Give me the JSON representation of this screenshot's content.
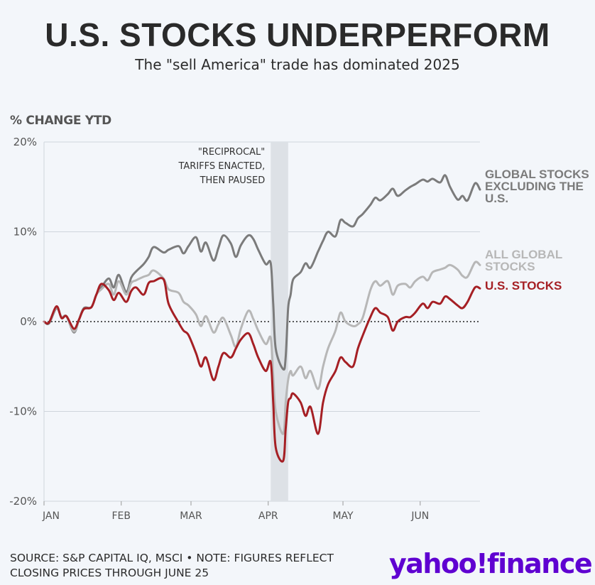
{
  "header": {
    "title": "U.S. STOCKS UNDERPERFORM",
    "subtitle": "The \"sell America\" trade has dominated 2025"
  },
  "footer": {
    "source_line1": "SOURCE: S&P CAPITAL IQ, MSCI • NOTE: FIGURES REFLECT",
    "source_line2": "CLOSING PRICES THROUGH JUNE 25",
    "logo_text_a": "yahoo",
    "logo_text_b": "!",
    "logo_text_c": "finance",
    "logo_color": "#5f01d1"
  },
  "chart_data": {
    "type": "line",
    "ylabel": "% CHANGE YTD",
    "ylim": [
      -20,
      20
    ],
    "yticks": [
      20,
      10,
      0,
      -10,
      -20
    ],
    "ytick_labels": [
      "20%",
      "10%",
      "0%",
      "-10%",
      "-20%"
    ],
    "xlim": [
      "2025-01-01",
      "2025-06-25"
    ],
    "xticks": [
      "2025-01-01",
      "2025-02-01",
      "2025-03-01",
      "2025-04-01",
      "2025-05-01",
      "2025-06-01"
    ],
    "xtick_labels": [
      "JAN",
      "FEB",
      "MAR",
      "APR",
      "MAY",
      "JUN"
    ],
    "zero_line": "dotted",
    "annotation": {
      "lines": [
        "\"RECIPROCAL\"",
        "TARIFFS ENACTED,",
        "THEN PAUSED"
      ],
      "shade_start": "2025-04-02",
      "shade_end": "2025-04-09",
      "shade_color": "#dde1e6"
    },
    "series": [
      {
        "name": "GLOBAL STOCKS EXCLUDING THE U.S.",
        "label_lines": [
          "GLOBAL STOCKS",
          "EXCLUDING THE",
          "U.S."
        ],
        "color": "#7b7b7b",
        "x": [
          "2025-01-01",
          "2025-01-03",
          "2025-01-06",
          "2025-01-08",
          "2025-01-10",
          "2025-01-13",
          "2025-01-15",
          "2025-01-17",
          "2025-01-20",
          "2025-01-22",
          "2025-01-24",
          "2025-01-27",
          "2025-01-29",
          "2025-01-31",
          "2025-02-03",
          "2025-02-05",
          "2025-02-07",
          "2025-02-10",
          "2025-02-12",
          "2025-02-14",
          "2025-02-18",
          "2025-02-20",
          "2025-02-24",
          "2025-02-26",
          "2025-02-28",
          "2025-03-03",
          "2025-03-05",
          "2025-03-07",
          "2025-03-10",
          "2025-03-12",
          "2025-03-14",
          "2025-03-17",
          "2025-03-19",
          "2025-03-21",
          "2025-03-24",
          "2025-03-26",
          "2025-03-28",
          "2025-03-31",
          "2025-04-02",
          "2025-04-03",
          "2025-04-04",
          "2025-04-07",
          "2025-04-08",
          "2025-04-09",
          "2025-04-10",
          "2025-04-11",
          "2025-04-14",
          "2025-04-16",
          "2025-04-18",
          "2025-04-21",
          "2025-04-23",
          "2025-04-25",
          "2025-04-28",
          "2025-04-30",
          "2025-05-02",
          "2025-05-05",
          "2025-05-07",
          "2025-05-09",
          "2025-05-12",
          "2025-05-14",
          "2025-05-16",
          "2025-05-19",
          "2025-05-21",
          "2025-05-23",
          "2025-05-26",
          "2025-05-28",
          "2025-05-30",
          "2025-06-02",
          "2025-06-04",
          "2025-06-06",
          "2025-06-09",
          "2025-06-11",
          "2025-06-13",
          "2025-06-16",
          "2025-06-18",
          "2025-06-20",
          "2025-06-23",
          "2025-06-25"
        ],
        "y": [
          0,
          -0.2,
          1.5,
          0.5,
          0.6,
          -1.2,
          0.2,
          1.5,
          1.6,
          3.0,
          3.8,
          4.8,
          3.8,
          5.2,
          3.3,
          4.9,
          5.6,
          6.4,
          7.2,
          8.3,
          7.7,
          8.0,
          8.4,
          7.6,
          8.4,
          9.4,
          7.8,
          8.8,
          6.8,
          8.2,
          9.6,
          8.7,
          7.2,
          8.5,
          9.6,
          9.2,
          8.0,
          6.4,
          6.5,
          2.0,
          -3.0,
          -5.3,
          -4.0,
          1.5,
          3.0,
          4.7,
          5.5,
          6.5,
          6.0,
          7.8,
          9.0,
          10.0,
          9.5,
          11.3,
          11.0,
          10.6,
          11.5,
          12.0,
          13.0,
          13.8,
          13.5,
          14.2,
          14.8,
          14.0,
          14.6,
          15.0,
          15.3,
          15.8,
          15.6,
          15.9,
          15.5,
          16.3,
          15.0,
          13.6,
          14.0,
          13.5,
          15.4,
          14.7
        ]
      },
      {
        "name": "ALL GLOBAL STOCKS",
        "label_lines": [
          "ALL GLOBAL",
          "STOCKS"
        ],
        "color": "#b7b7b7",
        "x": [
          "2025-01-01",
          "2025-01-03",
          "2025-01-06",
          "2025-01-08",
          "2025-01-10",
          "2025-01-13",
          "2025-01-15",
          "2025-01-17",
          "2025-01-20",
          "2025-01-22",
          "2025-01-24",
          "2025-01-27",
          "2025-01-29",
          "2025-01-31",
          "2025-02-03",
          "2025-02-05",
          "2025-02-07",
          "2025-02-10",
          "2025-02-12",
          "2025-02-14",
          "2025-02-18",
          "2025-02-20",
          "2025-02-24",
          "2025-02-26",
          "2025-02-28",
          "2025-03-03",
          "2025-03-05",
          "2025-03-07",
          "2025-03-10",
          "2025-03-12",
          "2025-03-14",
          "2025-03-17",
          "2025-03-19",
          "2025-03-21",
          "2025-03-24",
          "2025-03-26",
          "2025-03-28",
          "2025-03-31",
          "2025-04-02",
          "2025-04-03",
          "2025-04-04",
          "2025-04-07",
          "2025-04-08",
          "2025-04-09",
          "2025-04-10",
          "2025-04-11",
          "2025-04-14",
          "2025-04-16",
          "2025-04-18",
          "2025-04-21",
          "2025-04-23",
          "2025-04-25",
          "2025-04-28",
          "2025-04-30",
          "2025-05-02",
          "2025-05-05",
          "2025-05-07",
          "2025-05-09",
          "2025-05-12",
          "2025-05-14",
          "2025-05-16",
          "2025-05-19",
          "2025-05-21",
          "2025-05-23",
          "2025-05-26",
          "2025-05-28",
          "2025-05-30",
          "2025-06-02",
          "2025-06-04",
          "2025-06-06",
          "2025-06-09",
          "2025-06-11",
          "2025-06-13",
          "2025-06-16",
          "2025-06-18",
          "2025-06-20",
          "2025-06-23",
          "2025-06-25"
        ],
        "y": [
          0,
          -0.1,
          1.6,
          0.5,
          0.6,
          -1.1,
          0.2,
          1.4,
          1.6,
          3.0,
          3.6,
          4.2,
          3.0,
          4.5,
          3.0,
          4.3,
          4.6,
          5.0,
          5.2,
          5.7,
          4.8,
          3.6,
          3.2,
          2.2,
          1.8,
          0.8,
          -0.5,
          0.6,
          -1.2,
          -0.3,
          0.4,
          -1.5,
          -2.8,
          -0.8,
          1.2,
          0.3,
          -1.0,
          -2.5,
          -1.8,
          -6.0,
          -10.0,
          -12.5,
          -9.0,
          -6.5,
          -5.5,
          -6.0,
          -5.0,
          -6.3,
          -5.5,
          -7.5,
          -5.0,
          -3.0,
          -1.0,
          1.0,
          0.0,
          -0.5,
          -0.3,
          0.5,
          3.5,
          4.5,
          4.0,
          4.5,
          3.0,
          4.0,
          4.2,
          3.8,
          4.5,
          5.0,
          4.6,
          5.5,
          5.8,
          6.0,
          6.3,
          5.8,
          5.1,
          5.0,
          6.6,
          6.3
        ]
      },
      {
        "name": "U.S. STOCKS",
        "label_lines": [
          "U.S. STOCKS"
        ],
        "color": "#a51f24",
        "x": [
          "2025-01-01",
          "2025-01-03",
          "2025-01-06",
          "2025-01-08",
          "2025-01-10",
          "2025-01-13",
          "2025-01-15",
          "2025-01-17",
          "2025-01-20",
          "2025-01-22",
          "2025-01-24",
          "2025-01-27",
          "2025-01-29",
          "2025-01-31",
          "2025-02-03",
          "2025-02-05",
          "2025-02-07",
          "2025-02-10",
          "2025-02-12",
          "2025-02-14",
          "2025-02-18",
          "2025-02-20",
          "2025-02-24",
          "2025-02-26",
          "2025-02-28",
          "2025-03-03",
          "2025-03-05",
          "2025-03-07",
          "2025-03-10",
          "2025-03-12",
          "2025-03-14",
          "2025-03-17",
          "2025-03-19",
          "2025-03-21",
          "2025-03-24",
          "2025-03-26",
          "2025-03-28",
          "2025-03-31",
          "2025-04-02",
          "2025-04-03",
          "2025-04-04",
          "2025-04-07",
          "2025-04-08",
          "2025-04-09",
          "2025-04-10",
          "2025-04-11",
          "2025-04-14",
          "2025-04-16",
          "2025-04-18",
          "2025-04-21",
          "2025-04-23",
          "2025-04-25",
          "2025-04-28",
          "2025-04-30",
          "2025-05-02",
          "2025-05-05",
          "2025-05-07",
          "2025-05-09",
          "2025-05-12",
          "2025-05-14",
          "2025-05-16",
          "2025-05-19",
          "2025-05-21",
          "2025-05-23",
          "2025-05-26",
          "2025-05-28",
          "2025-05-30",
          "2025-06-02",
          "2025-06-04",
          "2025-06-06",
          "2025-06-09",
          "2025-06-11",
          "2025-06-13",
          "2025-06-16",
          "2025-06-18",
          "2025-06-20",
          "2025-06-23",
          "2025-06-25"
        ],
        "y": [
          0,
          -0.1,
          1.7,
          0.4,
          0.6,
          -0.8,
          0.2,
          1.4,
          1.6,
          3.0,
          4.2,
          3.5,
          2.4,
          3.2,
          2.2,
          3.4,
          3.8,
          3.0,
          4.3,
          4.5,
          4.7,
          2.0,
          -0.1,
          -1.0,
          -1.5,
          -3.5,
          -5.0,
          -4.0,
          -6.5,
          -5.0,
          -3.5,
          -4.0,
          -3.0,
          -2.0,
          -1.3,
          -2.5,
          -4.0,
          -5.5,
          -4.5,
          -9.0,
          -14.0,
          -15.5,
          -12.0,
          -9.0,
          -8.5,
          -8.0,
          -9.0,
          -10.5,
          -9.5,
          -12.5,
          -9.0,
          -7.0,
          -5.5,
          -4.0,
          -4.5,
          -5.0,
          -3.0,
          -1.5,
          0.5,
          1.5,
          1.0,
          0.5,
          -1.0,
          0.0,
          0.5,
          0.5,
          1.0,
          2.0,
          1.5,
          2.2,
          2.0,
          2.8,
          2.5,
          1.8,
          1.5,
          2.2,
          3.8,
          3.7
        ]
      }
    ]
  }
}
